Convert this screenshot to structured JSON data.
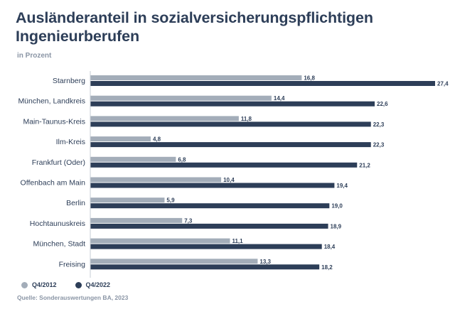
{
  "header": {
    "title": "Ausländeranteil in sozialversicherungspflichtigen Ingenieurberufen",
    "subtitle": "in Prozent"
  },
  "legend": {
    "series_a": "Q4/2012",
    "series_b": "Q4/2022"
  },
  "source": "Quelle: Sonderauswertungen BA, 2023",
  "colors": {
    "q2012": "#a3adb9",
    "q2022": "#2d3e58",
    "axis": "#c6ccd4"
  },
  "chart_data": {
    "type": "bar",
    "orientation": "horizontal",
    "title": "Ausländeranteil in sozialversicherungspflichtigen Ingenieurberufen",
    "subtitle": "in Prozent",
    "categories": [
      "Starnberg",
      "München, Landkreis",
      "Main-Taunus-Kreis",
      "Ilm-Kreis",
      "Frankfurt (Oder)",
      "Offenbach am Main",
      "Berlin",
      "Hochtaunuskreis",
      "München, Stadt",
      "Freising"
    ],
    "series": [
      {
        "name": "Q4/2012",
        "values": [
          16.8,
          14.4,
          11.8,
          4.8,
          6.8,
          10.4,
          5.9,
          7.3,
          11.1,
          13.3
        ],
        "labels": [
          "16,8",
          "14,4",
          "11,8",
          "4,8",
          "6,8",
          "10,4",
          "5,9",
          "7,3",
          "11,1",
          "13,3"
        ]
      },
      {
        "name": "Q4/2022",
        "values": [
          27.4,
          22.6,
          22.3,
          22.3,
          21.2,
          19.4,
          19.0,
          18.9,
          18.4,
          18.2
        ],
        "labels": [
          "27,4",
          "22,6",
          "22,3",
          "22,3",
          "21,2",
          "19,4",
          "19,0",
          "18,9",
          "18,4",
          "18,2"
        ]
      }
    ],
    "xlim": [
      0,
      27.4
    ],
    "xlabel": "",
    "ylabel": "",
    "grid": false,
    "legend_position": "bottom-left",
    "source": "Quelle: Sonderauswertungen BA, 2023"
  }
}
